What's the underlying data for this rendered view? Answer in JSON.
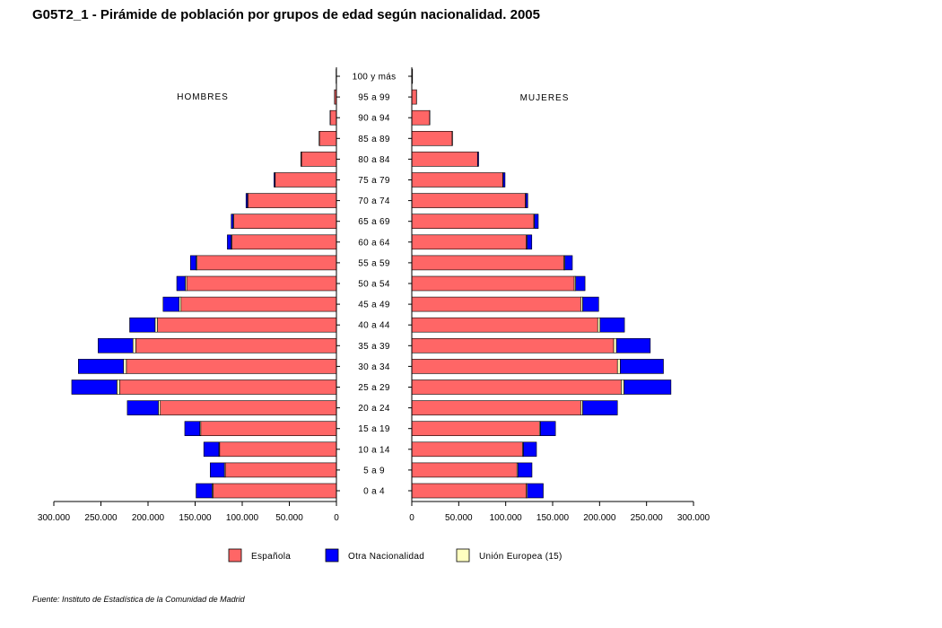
{
  "title": "G05T2_1 - Pirámide de población por grupos de edad según nacionalidad.  2005",
  "source": "Fuente: Instituto de Estadística de la Comunidad de Madrid",
  "chart_data": {
    "type": "bar",
    "orientation": "horizontal",
    "stacked": true,
    "categories": [
      "0 a 4",
      "5 a 9",
      "10 a 14",
      "15 a 19",
      "20 a 24",
      "25 a 29",
      "30 a 34",
      "35 a 39",
      "40 a 44",
      "45 a 49",
      "50 a 54",
      "55 a 59",
      "60 a 64",
      "65 a 69",
      "70 a 74",
      "75 a 79",
      "80 a 84",
      "85 a 89",
      "90 a 94",
      "95 a 99",
      "100 y más"
    ],
    "left_panel_label": "HOMBRES",
    "right_panel_label": "MUJERES",
    "xlim": [
      0,
      300000
    ],
    "x_ticks": [
      "0",
      "50.000",
      "100.000",
      "150.000",
      "200.000",
      "250.000",
      "300.000"
    ],
    "x_tick_values": [
      0,
      50000,
      100000,
      150000,
      200000,
      250000,
      300000
    ],
    "colors": {
      "Española": "#ff6666",
      "Otra Nacionalidad": "#0000ff",
      "Unión Europea (15)": "#ffffc0"
    },
    "legend": {
      "position": "bottom",
      "entries": [
        "Española",
        "Otra Nacionalidad",
        "Unión Europea (15)"
      ]
    },
    "hombres": [
      {
        "name": "Española",
        "values": [
          131000,
          118000,
          124000,
          144000,
          187000,
          230000,
          223000,
          213000,
          190000,
          165000,
          159000,
          148000,
          111000,
          109000,
          94000,
          65000,
          37000,
          18000,
          6500,
          2000,
          400
        ]
      },
      {
        "name": "Unión Europea (15)",
        "values": [
          1000,
          1000,
          800,
          1000,
          2000,
          3000,
          3000,
          3000,
          2500,
          2000,
          1500,
          1000,
          800,
          700,
          500,
          300,
          200,
          100,
          50,
          0,
          0
        ]
      },
      {
        "name": "Otra Nacionalidad",
        "values": [
          17000,
          15000,
          16000,
          16000,
          33000,
          48000,
          48000,
          37000,
          27000,
          17000,
          9000,
          6000,
          4000,
          2000,
          1500,
          1000,
          500,
          300,
          200,
          100,
          0
        ]
      }
    ],
    "mujeres": [
      {
        "name": "Española",
        "values": [
          122000,
          112000,
          118000,
          136000,
          180000,
          223000,
          219000,
          215000,
          198000,
          180000,
          173000,
          162000,
          122000,
          130000,
          121000,
          97000,
          70000,
          43000,
          19000,
          5000,
          800
        ]
      },
      {
        "name": "Unión Europea (15)",
        "values": [
          1000,
          1000,
          800,
          1000,
          2000,
          3000,
          3000,
          3000,
          2500,
          2000,
          1500,
          1000,
          800,
          700,
          500,
          300,
          200,
          100,
          50,
          0,
          0
        ]
      },
      {
        "name": "Otra Nacionalidad",
        "values": [
          17000,
          15000,
          14000,
          16000,
          37000,
          50000,
          46000,
          36000,
          26000,
          17000,
          10000,
          8000,
          5000,
          4000,
          2000,
          2000,
          1000,
          300,
          200,
          100,
          0
        ]
      }
    ]
  }
}
